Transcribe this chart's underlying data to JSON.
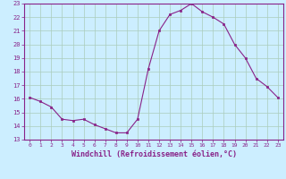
{
  "x": [
    0,
    1,
    2,
    3,
    4,
    5,
    6,
    7,
    8,
    9,
    10,
    11,
    12,
    13,
    14,
    15,
    16,
    17,
    18,
    19,
    20,
    21,
    22,
    23
  ],
  "y": [
    16.1,
    15.8,
    15.4,
    14.5,
    14.4,
    14.5,
    14.1,
    13.8,
    13.5,
    13.5,
    14.5,
    18.2,
    21.0,
    22.2,
    22.5,
    23.0,
    22.4,
    22.0,
    21.5,
    20.0,
    19.0,
    17.5,
    16.9,
    16.1
  ],
  "ylim": [
    13,
    23
  ],
  "xlim": [
    -0.5,
    23.5
  ],
  "yticks": [
    13,
    14,
    15,
    16,
    17,
    18,
    19,
    20,
    21,
    22,
    23
  ],
  "xticks": [
    0,
    1,
    2,
    3,
    4,
    5,
    6,
    7,
    8,
    9,
    10,
    11,
    12,
    13,
    14,
    15,
    16,
    17,
    18,
    19,
    20,
    21,
    22,
    23
  ],
  "xlabel": "Windchill (Refroidissement éolien,°C)",
  "line_color": "#882288",
  "marker_color": "#882288",
  "bg_color": "#cceeff",
  "grid_color": "#aaccbb",
  "border_color": "#882288",
  "xlabel_color": "#882288",
  "tick_color": "#882288"
}
